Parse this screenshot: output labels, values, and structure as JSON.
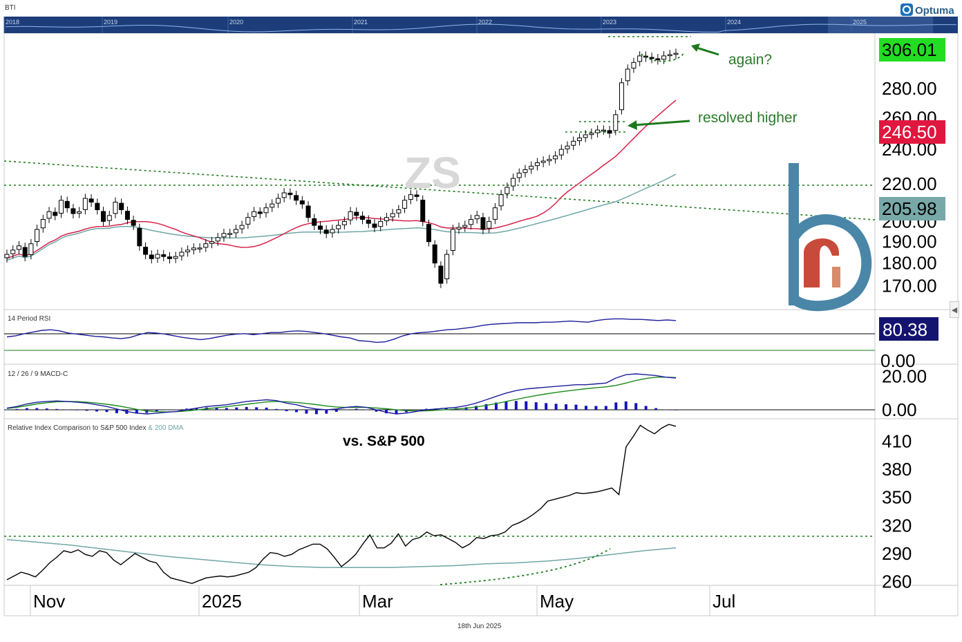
{
  "symbol_label": "BTI",
  "brand": "Optuma",
  "watermark": "ZS",
  "footer_date": "18th Jun 2025",
  "overview": {
    "years": [
      "2018",
      "2019",
      "2020",
      "2021",
      "2022",
      "2023",
      "2024",
      "2025"
    ]
  },
  "colors": {
    "up_candle": "#ffffff",
    "down_candle": "#000000",
    "ma50": "#d6204a",
    "ma200": "#6fa6a6",
    "dotted": "#1a7a1a",
    "annotation": "#1f7a1f",
    "rsi": "#1c1c9c",
    "macd": "#1c1c9c",
    "signal": "#1a8a1a",
    "hist": "#1515c0",
    "price_box": "#22dd22",
    "ma50_box": "#e0173f",
    "ma200_box": "#78a8a8",
    "rsi_box": "#141470",
    "logo": "#4a86a8",
    "logo_accent": "#c84a3a"
  },
  "price_panel": {
    "annotations": [
      "again?",
      "resolved higher"
    ],
    "badges": {
      "last": "306.01",
      "ma50": "246.50",
      "ma200": "205.98"
    }
  },
  "rsi_panel": {
    "title": "14 Period RSI",
    "value": "80.38",
    "axis_label": "0.00"
  },
  "macd_panel": {
    "title": "12 / 26 / 9 MACD-C"
  },
  "rel_panel": {
    "title": "Relative Index Comparison to S&P 500 Index",
    "title_suffix": "& 200 DMA",
    "annotation": "vs. S&P 500"
  },
  "chart_data": [
    {
      "type": "candlestick",
      "title": "ZS",
      "x_axis": {
        "labels": [
          "Nov",
          "2025",
          "Mar",
          "May",
          "Jul"
        ]
      },
      "y_axis": {
        "ticks": [
          170,
          180,
          190,
          200,
          220,
          240,
          260,
          280
        ],
        "scale": "log",
        "range": [
          160,
          322
        ]
      },
      "series": [
        {
          "name": "Price",
          "last": 306.01,
          "closes": [
            184,
            186,
            188,
            183,
            189,
            196,
            201,
            205,
            203,
            211,
            207,
            204,
            205,
            212,
            210,
            206,
            200,
            203,
            210,
            206,
            201,
            198,
            188,
            184,
            182,
            184,
            183,
            182,
            183,
            185,
            186,
            187,
            187,
            189,
            190,
            192,
            194,
            194,
            196,
            198,
            202,
            205,
            204,
            207,
            209,
            212,
            215,
            214,
            211,
            209,
            202,
            198,
            196,
            194,
            196,
            198,
            200,
            205,
            203,
            201,
            199,
            197,
            200,
            202,
            204,
            206,
            211,
            214,
            213,
            200,
            190,
            180,
            171,
            184,
            196,
            197,
            198,
            201,
            203,
            196,
            200,
            207,
            214,
            218,
            223,
            226,
            228,
            230,
            232,
            233,
            234,
            236,
            240,
            242,
            245,
            247,
            249,
            250,
            252,
            252,
            250,
            262,
            284,
            294,
            299,
            304,
            303,
            302,
            301,
            304,
            305,
            306
          ]
        },
        {
          "name": "MA50",
          "last": 246.5
        },
        {
          "name": "MA200",
          "last": 205.98
        }
      ]
    },
    {
      "type": "line",
      "title": "14 Period RSI",
      "y_axis": {
        "range": [
          0,
          100
        ]
      },
      "series": [
        {
          "name": "RSI",
          "last": 80.38,
          "values": [
            50,
            52,
            56,
            59,
            62,
            63,
            61,
            57,
            55,
            53,
            51,
            50,
            48,
            47,
            49,
            54,
            58,
            57,
            55,
            52,
            49,
            47,
            45,
            47,
            50,
            53,
            55,
            56,
            54,
            56,
            58,
            58,
            60,
            61,
            60,
            58,
            56,
            53,
            50,
            48,
            43,
            42,
            40,
            41,
            46,
            52,
            56,
            58,
            59,
            61,
            63,
            64,
            66,
            68,
            71,
            73,
            74,
            75,
            76,
            76,
            76,
            77,
            77,
            78,
            79,
            78,
            77,
            80,
            82,
            83,
            83,
            82,
            82,
            81,
            80,
            81,
            80
          ]
        }
      ]
    },
    {
      "type": "line",
      "title": "12 / 26 / 9 MACD-C",
      "y_axis": {
        "ticks": [
          0,
          20
        ],
        "range": [
          -4,
          24
        ]
      },
      "series": [
        {
          "name": "MACD",
          "values": [
            1,
            2,
            3.5,
            4.5,
            5,
            5.3,
            5,
            4.6,
            4,
            3,
            2,
            0.5,
            -1,
            -2,
            -2.5,
            -2,
            -1.5,
            -1,
            0,
            1,
            2,
            2.5,
            3,
            4,
            5,
            5.5,
            6,
            5.5,
            4,
            3,
            1.5,
            0.5,
            0,
            0.5,
            1.5,
            2,
            1.5,
            0,
            -1.5,
            -2.5,
            -2,
            -1,
            0,
            0.5,
            1,
            1.5,
            2.5,
            4,
            6,
            8,
            10,
            11.5,
            12.5,
            13,
            13.5,
            14,
            14.5,
            15,
            15,
            15.5,
            16,
            19,
            21,
            21.5,
            21,
            20.5,
            19.5,
            19
          ]
        },
        {
          "name": "Signal",
          "values": [
            0.8,
            1.5,
            2.5,
            3.5,
            4.2,
            4.8,
            5,
            4.9,
            4.6,
            4,
            3.3,
            2.5,
            1.4,
            0.3,
            -0.6,
            -1.1,
            -1.3,
            -1.1,
            -0.7,
            -0.1,
            0.6,
            1.3,
            1.9,
            2.6,
            3.3,
            4,
            4.7,
            5,
            4.8,
            4.4,
            3.8,
            3.1,
            2.3,
            1.7,
            1.4,
            1.4,
            1.4,
            1.1,
            0.6,
            0,
            -0.5,
            -0.7,
            -0.6,
            -0.3,
            0.1,
            0.5,
            1,
            1.7,
            2.6,
            3.7,
            5,
            6.2,
            7.4,
            8.5,
            9.5,
            10.4,
            11.2,
            11.9,
            12.6,
            13.2,
            13.7,
            14.6,
            16,
            17.5,
            18.7,
            19.5,
            19.5,
            19.3
          ]
        }
      ]
    },
    {
      "type": "line",
      "title": "Relative Index Comparison to S&P 500 Index",
      "y_axis": {
        "ticks": [
          260,
          290,
          320,
          350,
          380,
          410
        ],
        "range": [
          256,
          434
        ]
      },
      "series": [
        {
          "name": "Relative to S&P 500",
          "values": [
            262,
            266,
            270,
            268,
            265,
            272,
            280,
            286,
            293,
            291,
            294,
            289,
            287,
            293,
            291,
            283,
            278,
            284,
            290,
            286,
            282,
            280,
            270,
            264,
            262,
            260,
            258,
            261,
            264,
            265,
            266,
            265,
            266,
            268,
            270,
            275,
            284,
            291,
            290,
            287,
            289,
            294,
            297,
            300,
            300,
            295,
            286,
            276,
            282,
            289,
            300,
            310,
            296,
            296,
            301,
            311,
            298,
            305,
            307,
            313,
            309,
            310,
            306,
            302,
            296,
            300,
            307,
            306,
            309,
            310,
            313,
            320,
            323,
            327,
            332,
            338,
            346,
            348,
            350,
            352,
            355,
            354,
            355,
            356,
            358,
            360,
            353,
            404,
            415,
            427,
            422,
            418,
            424,
            428,
            426
          ]
        },
        {
          "name": "200 DMA",
          "values": [
            305,
            302,
            299,
            295,
            291,
            287,
            284,
            281,
            278,
            276,
            275,
            275,
            275,
            276,
            277,
            279,
            280,
            282,
            285,
            289,
            293,
            296
          ]
        }
      ]
    }
  ]
}
